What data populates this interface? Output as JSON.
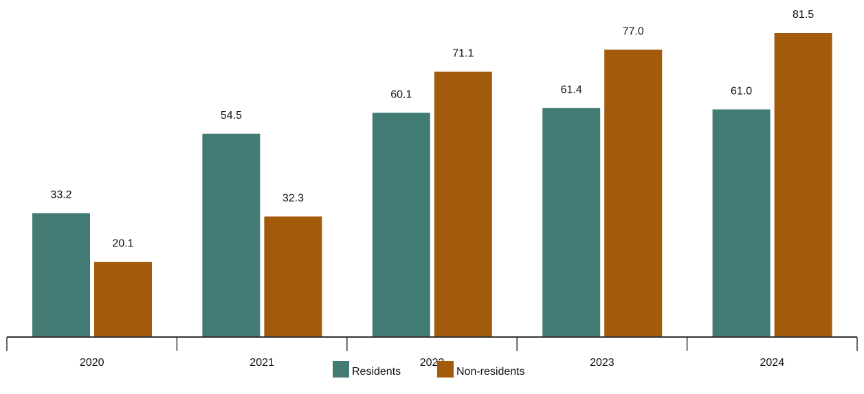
{
  "chart_data": {
    "type": "bar",
    "categories": [
      "2020",
      "2021",
      "2022",
      "2023",
      "2024"
    ],
    "series": [
      {
        "name": "Residents",
        "values": [
          33.2,
          54.5,
          60.1,
          61.4,
          61.0
        ],
        "color": "#417b73"
      },
      {
        "name": "Non-residents",
        "values": [
          20.1,
          32.3,
          71.1,
          77.0,
          81.5
        ],
        "color": "#a25a0b"
      }
    ],
    "value_labels": [
      [
        "33.2",
        "54.5",
        "60.1",
        "61.4",
        "61.0"
      ],
      [
        "20.1",
        "32.3",
        "71.1",
        "77.0",
        "81.5"
      ]
    ],
    "title": "",
    "xlabel": "",
    "ylabel": "",
    "ylim": [
      0,
      81.5
    ],
    "grid": false,
    "legend": "bottom-center",
    "axis_color": "#333333"
  }
}
